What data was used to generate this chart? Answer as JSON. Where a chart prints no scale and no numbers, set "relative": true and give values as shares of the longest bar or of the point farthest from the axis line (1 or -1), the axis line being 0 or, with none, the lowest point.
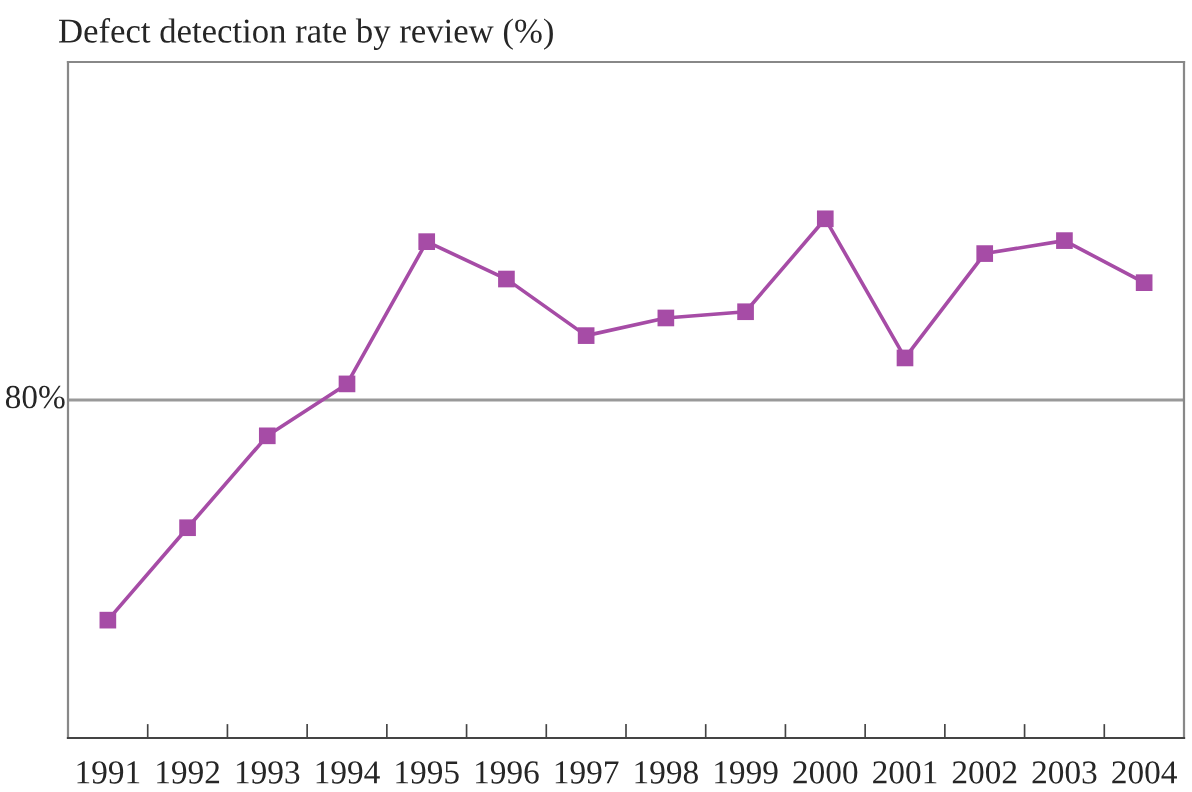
{
  "chart_data": {
    "type": "line",
    "title": "Defect detection rate by review (%)",
    "relative": true,
    "categories": [
      "1991",
      "1992",
      "1993",
      "1994",
      "1995",
      "1996",
      "1997",
      "1998",
      "1999",
      "2000",
      "2001",
      "2002",
      "2003",
      "2004"
    ],
    "series": [
      {
        "color": "#a64ca6",
        "values": [
          0.227,
          0.405,
          0.582,
          0.682,
          0.956,
          0.884,
          0.775,
          0.809,
          0.821,
          1.0,
          0.732,
          0.933,
          0.958,
          0.877
        ]
      }
    ],
    "marker": "square",
    "line_style": "solid",
    "grid": false,
    "legend": false,
    "ref_lines": [
      {
        "axis": "y",
        "value": 0.651,
        "color": "#999999"
      }
    ],
    "annotations": [
      "80%"
    ]
  }
}
